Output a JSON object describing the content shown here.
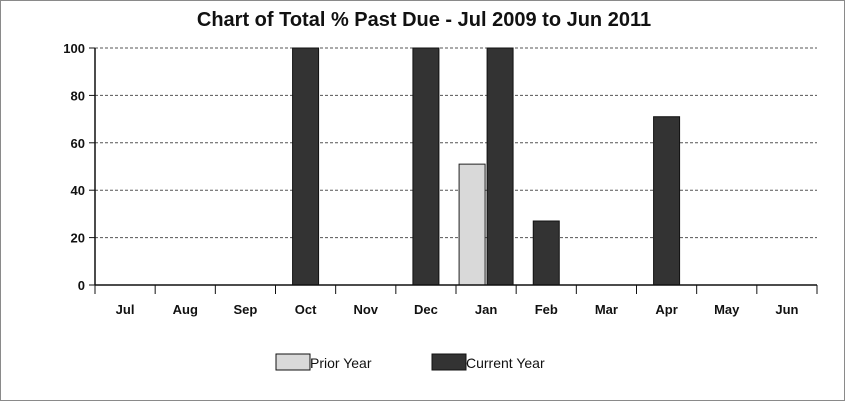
{
  "chart_data": {
    "type": "bar",
    "title": "Chart of Total % Past Due - Jul 2009 to Jun 2011",
    "xlabel": "",
    "ylabel": "",
    "categories": [
      "Jul",
      "Aug",
      "Sep",
      "Oct",
      "Nov",
      "Dec",
      "Jan",
      "Feb",
      "Mar",
      "Apr",
      "May",
      "Jun"
    ],
    "series": [
      {
        "name": "Prior Year",
        "color": "#d9d9d9",
        "values": [
          0,
          0,
          0,
          0,
          0,
          0,
          51,
          0,
          0,
          0,
          0,
          0
        ]
      },
      {
        "name": "Current Year",
        "color": "#333333",
        "values": [
          0,
          0,
          0,
          100,
          0,
          100,
          100,
          27,
          0,
          71,
          0,
          0
        ]
      }
    ],
    "ylim": [
      0,
      100
    ],
    "yticks": [
      0,
      20,
      40,
      60,
      80,
      100
    ],
    "grid": true,
    "legend_position": "bottom-center"
  }
}
